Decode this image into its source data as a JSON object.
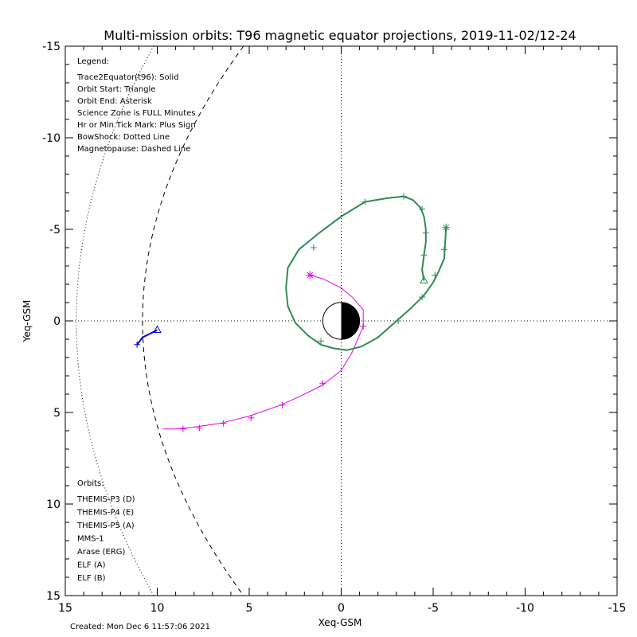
{
  "chart_data": {
    "type": "line",
    "title": "Multi-mission orbits: T96 magnetic equator projections, 2019-11-02/12-24",
    "xlabel": "Xeq-GSM",
    "ylabel": "Yeq-GSM",
    "xlim": [
      15,
      -15
    ],
    "ylim": [
      -15,
      15
    ],
    "x_ticks": [
      "15",
      "10",
      "5",
      "0",
      "-5",
      "-10",
      "-15"
    ],
    "y_ticks": [
      "-15",
      "-10",
      "-5",
      "0",
      "5",
      "10",
      "15"
    ],
    "grid": false,
    "legend": {
      "title": "Legend:",
      "lines": [
        "Trace2Equator(t96): Solid",
        "Orbit Start: Triangle",
        "Orbit End: Asterisk",
        "Science Zone is FULL Minutes",
        "Hr or Min Tick Mark: Plus Sign",
        "BowShock: Dotted Line",
        "Magnetopause: Dashed Line"
      ]
    },
    "orbits_legend": {
      "title": "Orbits:",
      "items": [
        {
          "label": "THEMIS-P3 (D)",
          "color": "#00e5e5"
        },
        {
          "label": "THEMIS-P4 (E)",
          "color": "#0000c8"
        },
        {
          "label": "THEMIS-P5 (A)",
          "color": "#e600e6"
        },
        {
          "label": "MMS-1",
          "color": "#000000"
        },
        {
          "label": "Arase (ERG)",
          "color": "#2e8b57"
        },
        {
          "label": "ELF (A)",
          "color": "#3c8cdc"
        },
        {
          "label": "ELF (B)",
          "color": "#dc1e1e"
        }
      ]
    },
    "series": [
      {
        "name": "THEMIS-P4 (E)",
        "color": "#0000c8",
        "x": [
          11.1,
          10.8,
          10.4,
          10.0
        ],
        "y": [
          1.3,
          0.9,
          0.7,
          0.5
        ],
        "ticks": [
          [
            11.1,
            1.3
          ]
        ],
        "start": [
          10.0,
          0.5
        ],
        "end": null
      },
      {
        "name": "THEMIS-P5 (A)",
        "color": "#e600e6",
        "x": [
          1.7,
          1.0,
          0.0,
          -0.6,
          -1.2,
          -1.2,
          -0.6,
          0.0,
          1.0,
          2.2,
          3.3,
          5.0,
          6.6,
          8.0,
          9.0,
          9.7
        ],
        "y": [
          -2.5,
          -2.3,
          -1.8,
          -1.3,
          -0.6,
          0.3,
          1.7,
          2.7,
          3.5,
          4.1,
          4.6,
          5.2,
          5.6,
          5.8,
          5.9,
          5.9
        ],
        "ticks": [
          [
            -1.2,
            0.3
          ],
          [
            1.0,
            3.4
          ],
          [
            3.2,
            4.6
          ],
          [
            4.9,
            5.3
          ],
          [
            6.4,
            5.6
          ],
          [
            7.7,
            5.85
          ],
          [
            8.6,
            5.9
          ]
        ],
        "start": null,
        "end": [
          1.7,
          -2.5
        ]
      },
      {
        "name": "Arase (ERG)",
        "color": "#2e8b57",
        "x": [
          -4.5,
          -4.4,
          -4.5,
          -4.6,
          -4.6,
          -4.5,
          -4.3,
          -3.9,
          -3.4,
          -2.5,
          -1.3,
          0.0,
          1.2,
          2.3,
          2.9,
          3.0,
          2.9,
          2.5,
          1.8,
          1.1,
          0.4,
          -0.3,
          -1.1,
          -2.0,
          -2.9,
          -3.8,
          -4.5,
          -5.0,
          -5.3,
          -5.6,
          -5.7
        ],
        "y": [
          -2.2,
          -2.8,
          -3.6,
          -4.3,
          -5.0,
          -5.7,
          -6.2,
          -6.6,
          -6.8,
          -6.7,
          -6.5,
          -5.7,
          -4.8,
          -3.9,
          -2.9,
          -1.8,
          -0.8,
          0.1,
          0.8,
          1.3,
          1.5,
          1.6,
          1.4,
          0.9,
          0.1,
          -0.7,
          -1.4,
          -2.1,
          -2.7,
          -3.4,
          -5.1
        ],
        "ticks": [
          [
            -4.5,
            -3.6
          ],
          [
            -4.6,
            -4.8
          ],
          [
            -4.4,
            -6.1
          ],
          [
            -3.4,
            -6.8
          ],
          [
            -1.3,
            -6.5
          ],
          [
            1.5,
            -4.0
          ],
          [
            1.1,
            1.1
          ],
          [
            -3.1,
            0.0
          ],
          [
            -4.4,
            -1.3
          ],
          [
            -5.1,
            -2.5
          ],
          [
            -5.6,
            -3.9
          ]
        ],
        "start": [
          -4.5,
          -2.2
        ],
        "end": [
          -5.7,
          -5.1
        ]
      }
    ],
    "earth": {
      "radius": 1
    },
    "footer": "Created: Mon Dec  6 11:57:06 2021"
  }
}
